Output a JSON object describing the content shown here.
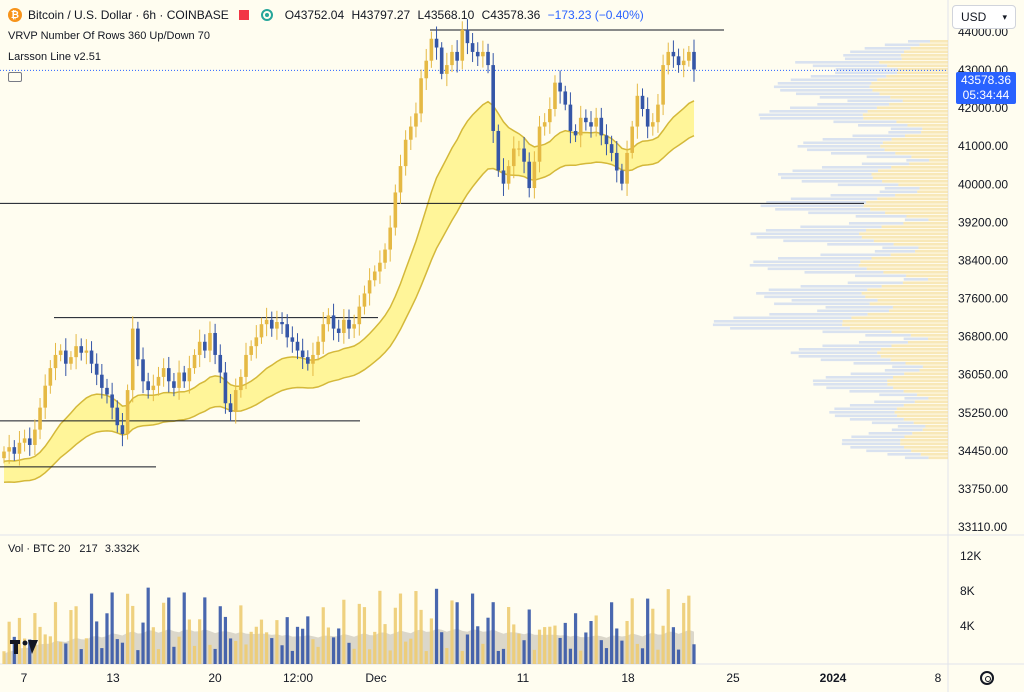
{
  "header": {
    "symbol": "Bitcoin / U.S. Dollar · 6h · COINBASE",
    "open": "O43752.04",
    "high": "H43797.27",
    "low": "L43568.10",
    "close": "C43578.36",
    "change": "−173.23 (−0.40%)",
    "indicator_1": "VRVP Number Of Rows 360 Up/Down 70",
    "indicator_2": "Larsson Line v2.51"
  },
  "currency_select": "USD",
  "last_price": {
    "price": "43578.36",
    "countdown": "05:34:44"
  },
  "volume_panel": {
    "label": "Vol · BTC 20",
    "value_1": "217",
    "value_2": "3.332K"
  },
  "price_axis_labels": [
    "44000.00",
    "43000.00",
    "42000.00",
    "41000.00",
    "40000.00",
    "39200.00",
    "38400.00",
    "37600.00",
    "36800.00",
    "36050.00",
    "35250.00",
    "34450.00",
    "33750.00",
    "33110.00"
  ],
  "volume_axis_labels": [
    "12K",
    "8K",
    "4K"
  ],
  "time_axis_labels": [
    "7",
    "13",
    "20",
    "12:00",
    "Dec",
    "11",
    "18",
    "25",
    "2024",
    "8"
  ],
  "colors": {
    "bg": "#fffdf0",
    "up": "#e5b944",
    "down": "#3556a7",
    "band": "#fff38a",
    "last_price": "#2962ff"
  },
  "chart_data": {
    "type": "candlestick",
    "timeframe": "6h",
    "ylim": [
      33000,
      45000
    ],
    "last_price": 43578.36,
    "horizontal_levels": [
      44500,
      40550,
      37950,
      35600,
      34550
    ],
    "candles_approx_close": [
      34900,
      35000,
      34850,
      35100,
      35200,
      35050,
      35400,
      35900,
      36400,
      36800,
      37100,
      37200,
      36900,
      37050,
      37300,
      37150,
      37200,
      36900,
      36650,
      36350,
      36200,
      35900,
      35500,
      35300,
      36300,
      37700,
      37000,
      36500,
      36300,
      36400,
      36600,
      36800,
      36500,
      36350,
      36700,
      36500,
      36800,
      37100,
      37400,
      37200,
      37600,
      37100,
      36700,
      36000,
      35800,
      36300,
      36600,
      37100,
      37300,
      37500,
      37800,
      37900,
      37700,
      37850,
      37800,
      37500,
      37400,
      37200,
      37050,
      36900,
      37100,
      37400,
      37800,
      38000,
      37700,
      37600,
      37900,
      37700,
      37800,
      38200,
      38500,
      38800,
      39000,
      39200,
      39500,
      40000,
      40800,
      41400,
      42000,
      42300,
      42600,
      43400,
      43800,
      44300,
      44100,
      43500,
      43700,
      44000,
      43800,
      44500,
      44200,
      44000,
      43900,
      44000,
      43700,
      42200,
      41300,
      41000,
      41400,
      41800,
      41800,
      41500,
      40900,
      41500,
      42300,
      42400,
      42700,
      43300,
      43100,
      42800,
      42200,
      42100,
      42500,
      42400,
      42300,
      42500,
      42100,
      41900,
      41700,
      41300,
      41000,
      41700,
      42300,
      43000,
      42700,
      42300,
      42400,
      42800,
      43700,
      44000,
      43900,
      43700,
      43800,
      44000,
      43600
    ]
  }
}
